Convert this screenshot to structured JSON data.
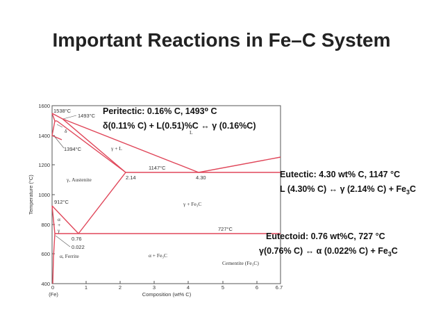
{
  "slide": {
    "title": "Important Reactions in Fe–C System"
  },
  "diagram": {
    "y_ticks": [
      "1600",
      "1400",
      "1200",
      "1000",
      "800",
      "600",
      "400"
    ],
    "x_ticks": [
      "0",
      "1",
      "2",
      "3",
      "4",
      "5",
      "6",
      "6.7"
    ],
    "x_origin_label": "(Fe)",
    "xlabel": "Composition (wt% C)",
    "ylabel": "Temperature (°C)",
    "regions": {
      "liquid": "L",
      "gamma_L": "γ + L",
      "austenite": "γ, Austenite",
      "gamma_fe3c": "γ + Fe₃C",
      "alpha_fe3c": "α + Fe₃C",
      "alpha_ferrite": "α, Ferrite",
      "delta": "δ",
      "alpha_gamma_a": "α",
      "alpha_gamma_plus": "+",
      "alpha_gamma_g": "γ",
      "cementite": "Cementite (Fe₃C)"
    },
    "point_labels": {
      "t1538": "1538°C",
      "t1493": "1493°C",
      "t1394": "1394°C",
      "t1147": "1147°C",
      "t912": "912°C",
      "t727": "727°C",
      "c214": "2.14",
      "c430": "4.30",
      "c076": "0.76",
      "c0022": "0.022"
    }
  },
  "annotations": {
    "peritectic": {
      "line1": "Peritectic: 0.16% C, 1493⁰ C",
      "line2": "δ(0.11% C) + L(0.51)%C ↔ γ (0.16%C)"
    },
    "eutectic": {
      "line1": "Eutectic: 4.30 wt% C, 1147 °C",
      "line2_pre": "L (4.30% C) ↔ γ (2.14% C) + Fe",
      "line2_sub": "3",
      "line2_post": "C"
    },
    "eutectoid": {
      "line1": "Eutectoid: 0.76 wt%C, 727 °C",
      "line2_pre": "γ(0.76% C) ↔ α (0.022% C) + Fe",
      "line2_sub": "3",
      "line2_post": "C"
    }
  },
  "colors": {
    "phase_line": "#e0475a",
    "text": "#222222",
    "frame": "#555555"
  }
}
